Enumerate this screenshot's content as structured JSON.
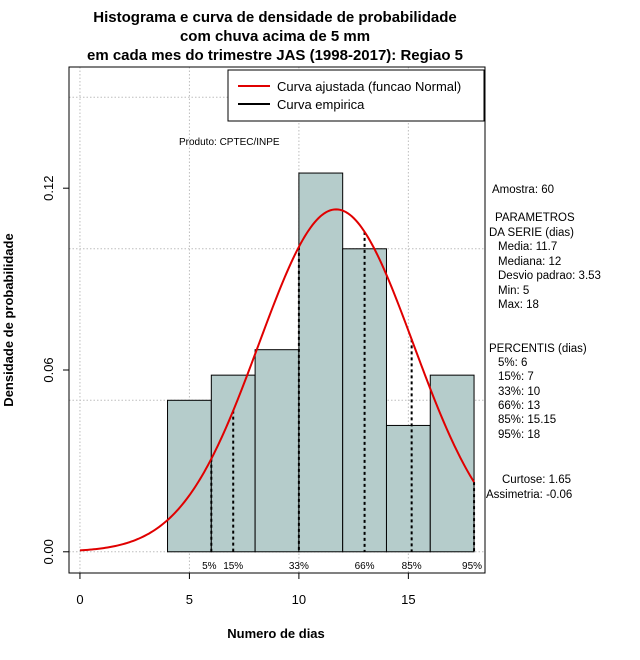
{
  "chart_data": {
    "type": "bar",
    "title_lines": [
      "Histograma e curva de densidade de probabilidade",
      "com chuva acima de 5 mm",
      "em cada mes do trimestre JAS (1998-2017): Regiao 5"
    ],
    "xlabel": "Numero de dias",
    "ylabel": "Densidade de probabilidade",
    "xlim": [
      -0.5,
      18.5
    ],
    "ylim": [
      -0.007,
      0.16
    ],
    "x_ticks": [
      0,
      5,
      10,
      15
    ],
    "x_tick_labels": [
      "0",
      "5",
      "10",
      "15"
    ],
    "y_ticks": [
      0.0,
      0.06,
      0.12
    ],
    "y_tick_labels": [
      "0.00",
      "0.06",
      "0.12"
    ],
    "grid_x": [
      0,
      5,
      10,
      15
    ],
    "grid_y": [
      0,
      0.05,
      0.1,
      0.15
    ],
    "histogram": {
      "bin_edges": [
        4,
        6,
        8,
        10,
        12,
        14,
        16,
        18
      ],
      "densities": [
        0.05,
        0.0583,
        0.0667,
        0.125,
        0.1,
        0.0417,
        0.0583
      ],
      "fill_color": "#b5cccb"
    },
    "normal_curve": {
      "name": "Curva ajustada (funcao Normal)",
      "mean": 11.7,
      "sd": 3.53,
      "x_range": [
        0,
        18
      ],
      "color": "#e00000"
    },
    "percentile_markers": [
      {
        "value": 6,
        "label": "5%"
      },
      {
        "value": 7,
        "label": "15%"
      },
      {
        "value": 10,
        "label": "33%"
      },
      {
        "value": 13,
        "label": "66%"
      },
      {
        "value": 15.15,
        "label": "85%"
      },
      {
        "value": 18,
        "label": "95%"
      }
    ],
    "legend": {
      "placement": "top-right",
      "entries": [
        {
          "label": "Curva ajustada (funcao Normal)",
          "color": "#e00000"
        },
        {
          "label": "Curva empirica",
          "color": "#000000"
        }
      ]
    },
    "annotation": "Produto: CPTEC/INPE"
  },
  "side_panel": {
    "sample": "Amostra: 60",
    "params_header_1": "PARAMETROS",
    "params_header_2": "DA SERIE (dias)",
    "media": "Media: 11.7",
    "mediana": "Mediana: 12",
    "desvio": "Desvio padrao: 3.53",
    "min": "Min: 5",
    "max": "Max: 18",
    "percentis_header": "PERCENTIS (dias)",
    "p5": "5%: 6",
    "p15": "15%: 7",
    "p33": "33%: 10",
    "p66": "66%: 13",
    "p85": "85%: 15.15",
    "p95": "95%: 18",
    "curtose": "Curtose: 1.65",
    "assimetria": "Assimetria: -0.06"
  }
}
